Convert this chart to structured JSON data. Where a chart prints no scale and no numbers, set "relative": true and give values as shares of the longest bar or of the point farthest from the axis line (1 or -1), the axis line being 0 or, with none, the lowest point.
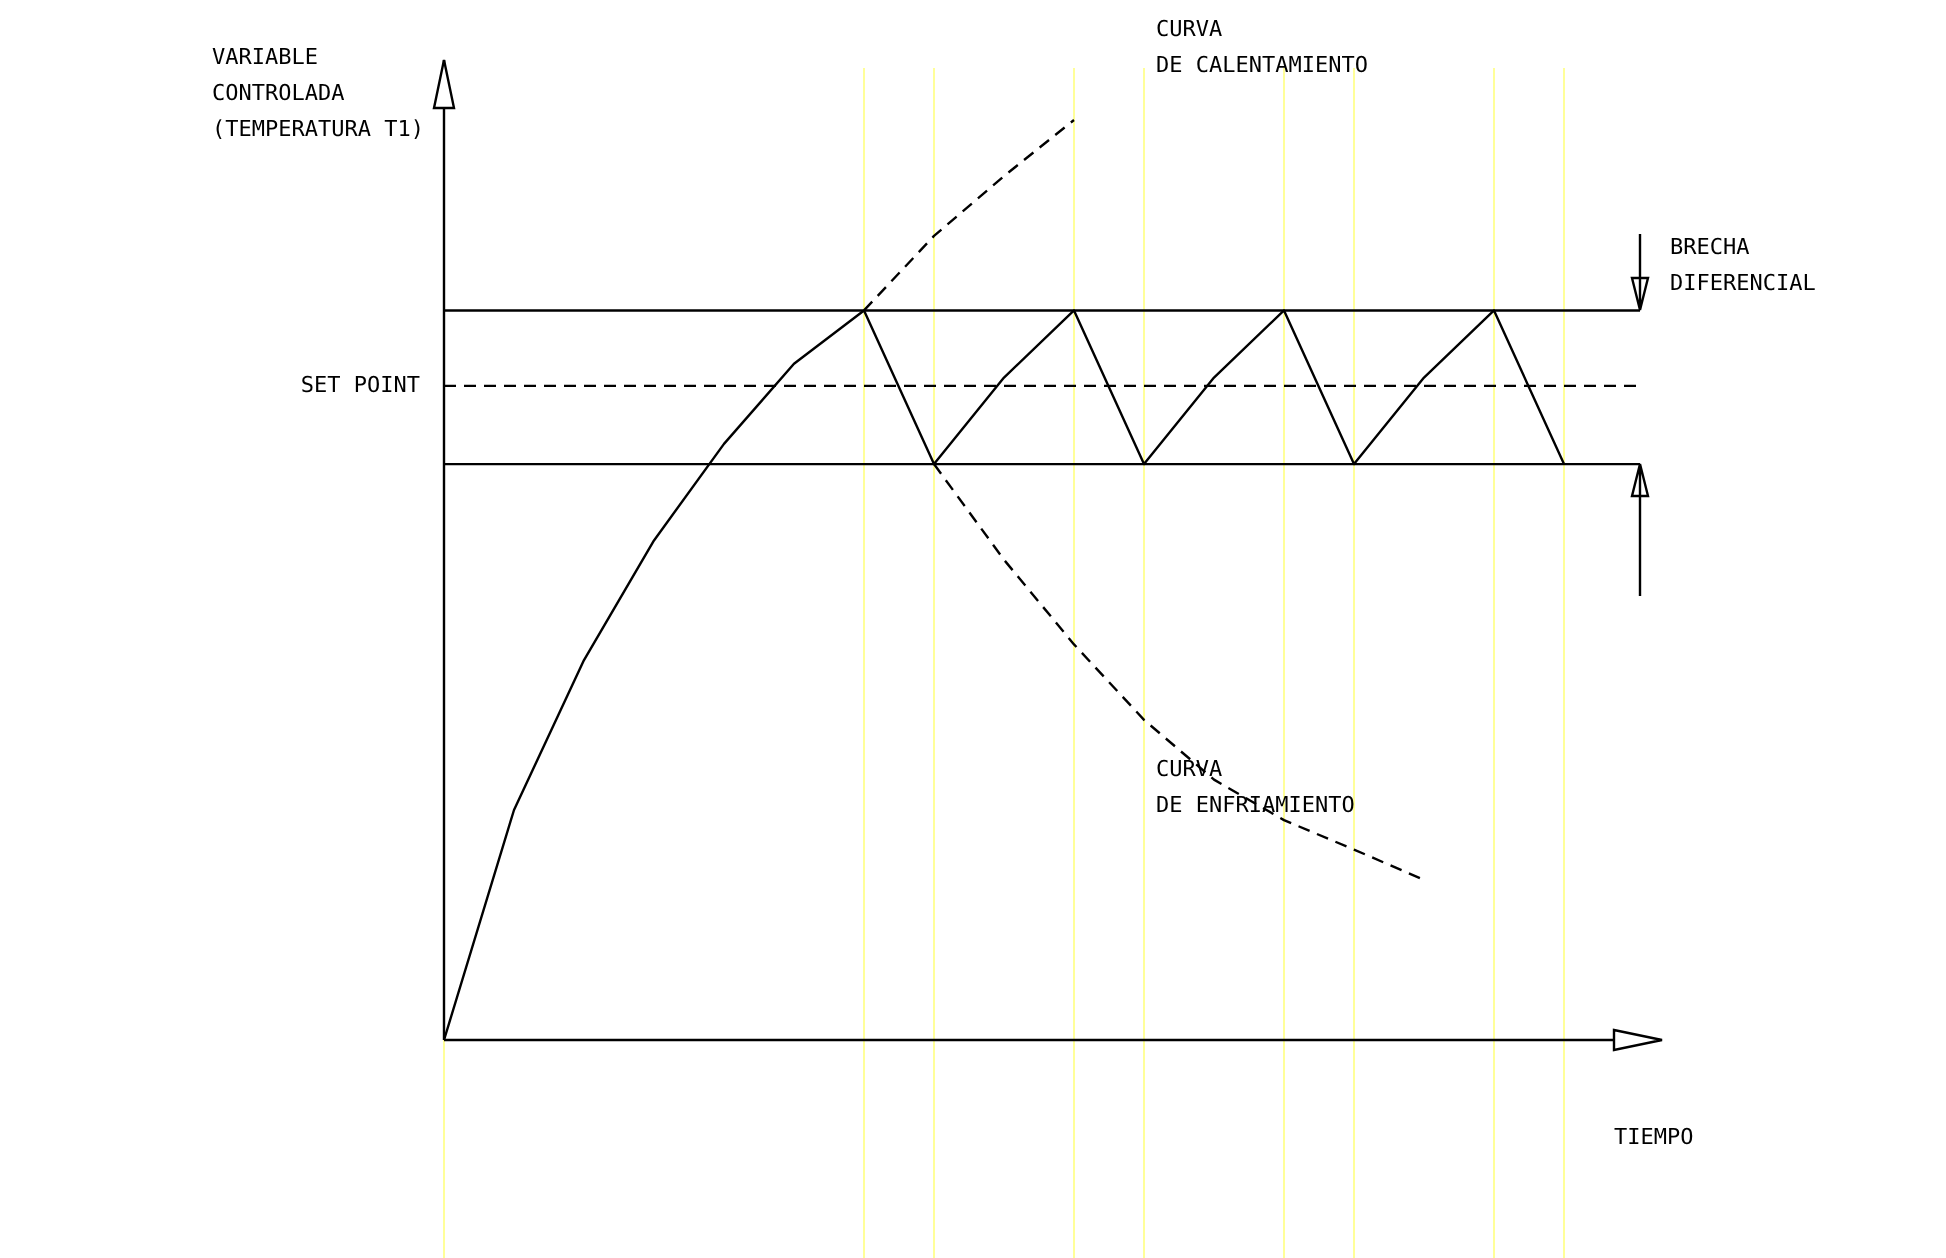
{
  "chart_data": {
    "type": "line",
    "relative": true,
    "ylabel": "VARIABLE\nCONTROLADA\n(TEMPERATURA T1)",
    "xlabel": "TIEMPO",
    "grid": "x",
    "categories": [
      null,
      null,
      null,
      null,
      null,
      null,
      null,
      null,
      null,
      null,
      null,
      null,
      null,
      null,
      null,
      null,
      null,
      null
    ],
    "series": [
      {
        "color": "#000000",
        "line_style": "solid",
        "values": [
          0,
          0.25,
          0.413,
          0.543,
          0.648,
          0.735,
          0.793,
          null,
          null,
          null,
          null,
          null,
          null,
          null,
          null,
          null,
          null,
          null
        ]
      },
      {
        "color": "#000000",
        "line_style": "dashed",
        "values": [
          null,
          null,
          null,
          null,
          null,
          null,
          0.793,
          0.874,
          0.939,
          1,
          null,
          null,
          null,
          null,
          null,
          null,
          null,
          null
        ]
      },
      {
        "color": "#000000",
        "line_style": "solid",
        "values": [
          null,
          null,
          null,
          null,
          null,
          null,
          0.793,
          0.626,
          0.72,
          0.793,
          0.626,
          0.72,
          0.793,
          0.626,
          0.72,
          0.793,
          0.626,
          null
        ]
      },
      {
        "color": "#000000",
        "line_style": "dashed",
        "values": [
          null,
          null,
          null,
          null,
          null,
          null,
          null,
          0.626,
          0.522,
          0.43,
          0.348,
          0.283,
          0.239,
          0.207,
          0.174,
          null,
          null,
          null
        ]
      }
    ],
    "ref_lines": [
      {
        "axis": "y",
        "value": 0.793,
        "color": "#000000",
        "line_style": "solid"
      },
      {
        "axis": "y",
        "value": 0.711,
        "label": "SET POINT",
        "color": "#000000",
        "line_style": "dashed"
      },
      {
        "axis": "y",
        "value": 0.626,
        "color": "#000000",
        "line_style": "solid"
      }
    ],
    "annotations": [
      "CURVA\nDE CALENTAMIENTO",
      "CURVA\nDE ENFRIAMIENTO",
      "BRECHA\nDIFERENCIAL"
    ]
  }
}
